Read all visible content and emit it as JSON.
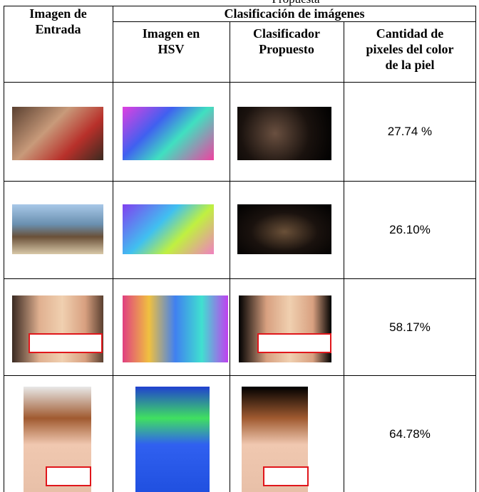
{
  "caption": "Propuesta",
  "table": {
    "header": {
      "col1": [
        "Imagen de",
        "Entrada"
      ],
      "group": "Clasificación de imágenes",
      "sub": [
        [
          "Imagen en",
          "HSV"
        ],
        [
          "Clasificador",
          "Propuesto"
        ],
        [
          "Cantidad de",
          "pixeles del color",
          "de la piel"
        ]
      ]
    },
    "rows": [
      "27.74 %",
      "26.10%",
      "58.17%",
      "64.78%"
    ]
  }
}
